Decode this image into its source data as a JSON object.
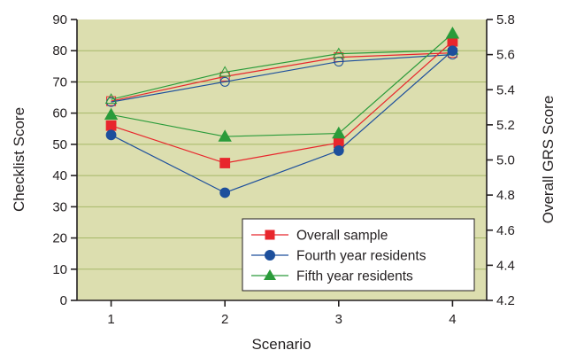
{
  "chart_data": {
    "type": "line",
    "x": [
      1,
      2,
      3,
      4
    ],
    "xlabel": "Scenario",
    "ylabel_left": "Checklist Score",
    "ylabel_right": "Overall GRS Score",
    "ylim_left": [
      0,
      90
    ],
    "ylim_right": [
      4.2,
      5.8
    ],
    "xlim": [
      0.7,
      4.3
    ],
    "yticks_left": [
      "0",
      "10",
      "20",
      "30",
      "40",
      "50",
      "60",
      "70",
      "80",
      "90"
    ],
    "yticks_right": [
      "4.2",
      "4.4",
      "4.6",
      "4.8",
      "5.0",
      "5.2",
      "5.4",
      "5.6",
      "5.8"
    ],
    "xticks": [
      "1",
      "2",
      "3",
      "4"
    ],
    "grid": "horizontal",
    "background_color": "#dcdeaf",
    "legend_position": "bottom-right",
    "series": [
      {
        "name": "Overall sample",
        "marker": "square",
        "color": "#e8262c",
        "axis": "left",
        "values": [
          56,
          44,
          50.5,
          83
        ]
      },
      {
        "name": "Fourth year residents",
        "marker": "circle",
        "color": "#1d4f9c",
        "axis": "left",
        "values": [
          53,
          34.5,
          48,
          80
        ]
      },
      {
        "name": "Fifth year residents",
        "marker": "triangle",
        "color": "#2a9b3a",
        "axis": "left",
        "values": [
          59.5,
          52.5,
          53.5,
          85.5
        ]
      },
      {
        "name": "",
        "marker": "open-square",
        "color": "#e8262c",
        "axis": "right",
        "values": [
          5.335,
          5.475,
          5.585,
          5.61
        ]
      },
      {
        "name": "",
        "marker": "open-circle",
        "color": "#1d4f9c",
        "axis": "right",
        "values": [
          5.33,
          5.445,
          5.56,
          5.6
        ]
      },
      {
        "name": "",
        "marker": "open-triangle",
        "color": "#2a9b3a",
        "axis": "right",
        "values": [
          5.345,
          5.5,
          5.605,
          5.625
        ]
      }
    ]
  }
}
